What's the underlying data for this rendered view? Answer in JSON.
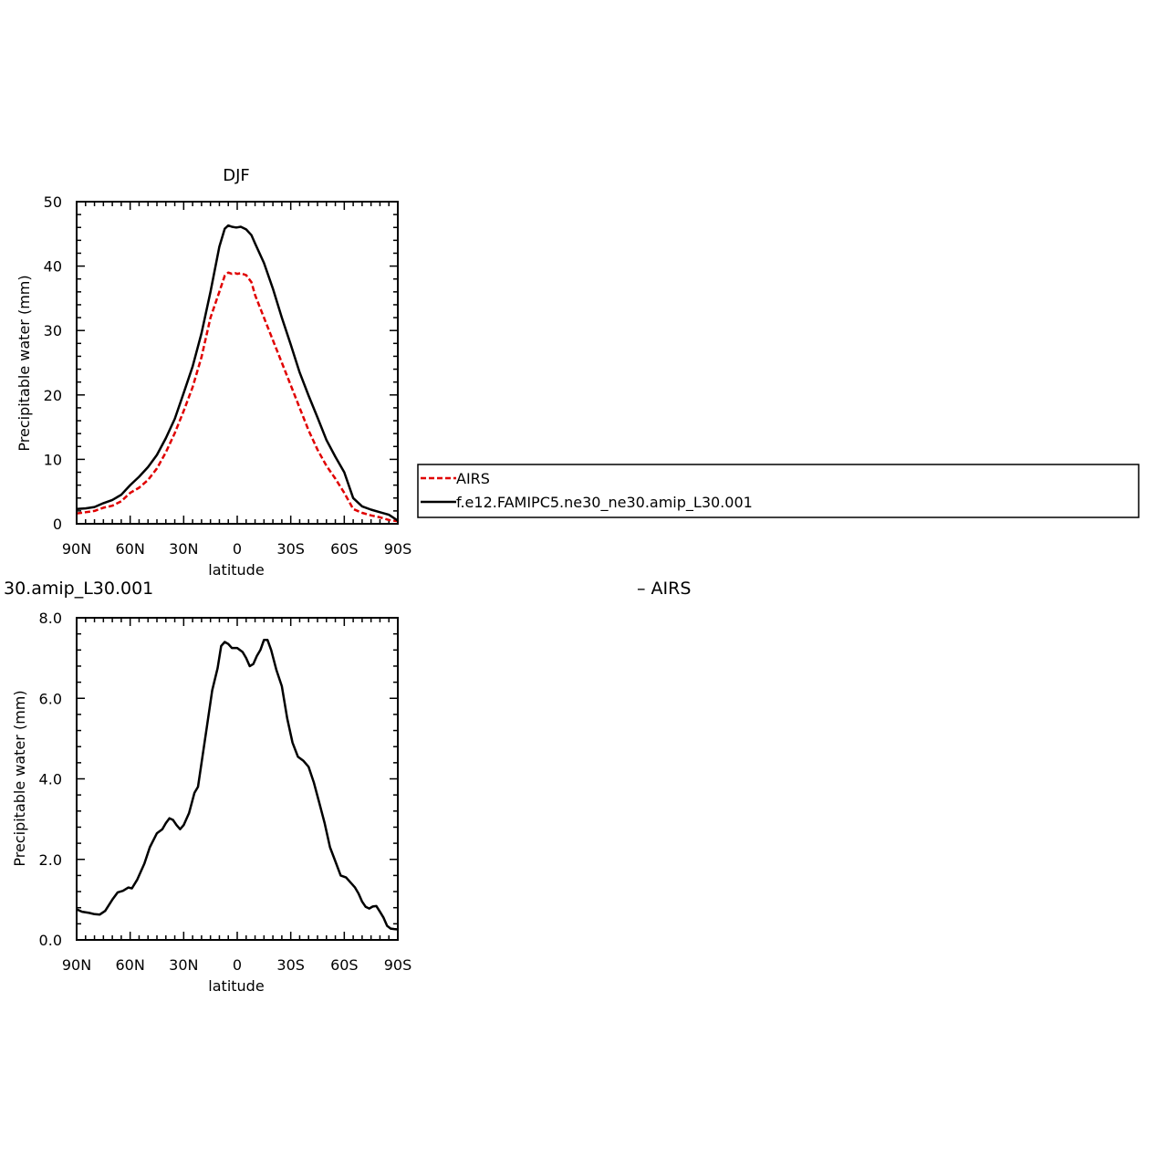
{
  "chart_data": [
    {
      "type": "line",
      "title": "DJF",
      "xlabel": "latitude",
      "ylabel": "Precipitable water (mm)",
      "x_ticks": [
        "90N",
        "60N",
        "30N",
        "0",
        "30S",
        "60S",
        "90S"
      ],
      "y_ticks": [
        "0",
        "10",
        "20",
        "30",
        "40",
        "50"
      ],
      "xlim": [
        -90,
        90
      ],
      "ylim": [
        0,
        50
      ],
      "x": [
        -90,
        -85,
        -80,
        -75,
        -70,
        -65,
        -60,
        -55,
        -50,
        -45,
        -40,
        -35,
        -30,
        -25,
        -20,
        -15,
        -10,
        -7,
        -5,
        -3,
        -1,
        0,
        2,
        5,
        8,
        10,
        15,
        20,
        25,
        30,
        35,
        40,
        45,
        50,
        55,
        60,
        65,
        70,
        75,
        80,
        85,
        90
      ],
      "series": [
        {
          "name": "AIRS",
          "color": "#e00000",
          "dash": "dashed",
          "values": [
            1.6,
            1.8,
            2.0,
            2.5,
            2.8,
            3.5,
            4.8,
            5.6,
            6.8,
            8.6,
            11.1,
            14.1,
            17.5,
            21.2,
            25.9,
            32.0,
            36.0,
            38.5,
            39.0,
            38.8,
            38.9,
            38.8,
            38.9,
            38.6,
            37.5,
            35.5,
            32.0,
            28.5,
            25.0,
            21.5,
            18.0,
            14.5,
            11.5,
            9.0,
            7.0,
            4.8,
            2.3,
            1.7,
            1.3,
            1.0,
            0.6,
            0.4
          ]
        },
        {
          "name": "f.e12.FAMIPC5.ne30_ne30.amip_L30.001",
          "color": "#000000",
          "dash": "solid",
          "values": [
            2.3,
            2.4,
            2.6,
            3.2,
            3.7,
            4.5,
            6.0,
            7.3,
            8.8,
            10.7,
            13.3,
            16.3,
            20.3,
            24.4,
            29.6,
            36.0,
            43.0,
            45.8,
            46.3,
            46.1,
            46.0,
            46.0,
            46.1,
            45.7,
            44.8,
            43.5,
            40.5,
            36.5,
            32.0,
            27.8,
            23.5,
            19.9,
            16.5,
            13.0,
            10.4,
            8.0,
            4.0,
            2.7,
            2.2,
            1.8,
            1.4,
            0.5
          ]
        }
      ],
      "legend": {
        "entries": [
          "AIRS",
          "f.e12.FAMIPC5.ne30_ne30.amip_L30.001"
        ],
        "position": "right"
      }
    },
    {
      "type": "line",
      "title_left": "30.amip_L30.001",
      "title_right": "– AIRS",
      "xlabel": "latitude",
      "ylabel": "Precipitable water (mm)",
      "x_ticks": [
        "90N",
        "60N",
        "30N",
        "0",
        "30S",
        "60S",
        "90S"
      ],
      "y_ticks": [
        "0.0",
        "2.0",
        "4.0",
        "6.0",
        "8.0"
      ],
      "xlim": [
        -90,
        90
      ],
      "ylim": [
        0,
        8
      ],
      "x": [
        -90,
        -87,
        -83,
        -80,
        -77,
        -74,
        -70,
        -67,
        -64,
        -61,
        -59,
        -56,
        -52,
        -49,
        -45,
        -42,
        -40,
        -38,
        -36,
        -34,
        -32,
        -30,
        -27,
        -24,
        -22,
        -20,
        -17,
        -14,
        -11,
        -9,
        -7,
        -5,
        -3,
        0,
        3,
        5,
        7,
        9,
        11,
        13,
        15,
        17,
        19,
        22,
        25,
        28,
        31,
        34,
        37,
        40,
        43,
        46,
        49,
        52,
        55,
        58,
        61,
        64,
        66,
        68,
        70,
        72,
        74,
        76,
        78,
        80,
        82,
        84,
        86,
        88,
        90
      ],
      "series": [
        {
          "name": "",
          "color": "#000000",
          "dash": "solid",
          "values": [
            0.76,
            0.7,
            0.67,
            0.64,
            0.63,
            0.72,
            1.0,
            1.18,
            1.22,
            1.3,
            1.28,
            1.5,
            1.9,
            2.3,
            2.65,
            2.75,
            2.9,
            3.02,
            2.98,
            2.85,
            2.75,
            2.85,
            3.15,
            3.65,
            3.8,
            4.4,
            5.3,
            6.2,
            6.75,
            7.3,
            7.4,
            7.35,
            7.25,
            7.25,
            7.15,
            7.0,
            6.8,
            6.85,
            7.05,
            7.2,
            7.45,
            7.45,
            7.2,
            6.7,
            6.3,
            5.5,
            4.9,
            4.55,
            4.45,
            4.3,
            3.9,
            3.4,
            2.9,
            2.3,
            1.95,
            1.6,
            1.55,
            1.4,
            1.3,
            1.15,
            0.95,
            0.82,
            0.78,
            0.83,
            0.84,
            0.7,
            0.55,
            0.35,
            0.28,
            0.27,
            0.26
          ]
        }
      ]
    }
  ]
}
